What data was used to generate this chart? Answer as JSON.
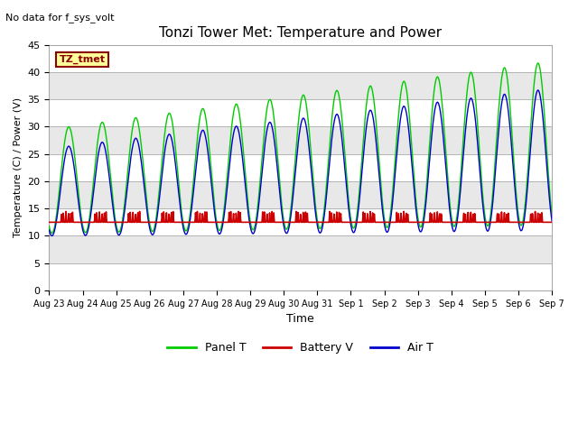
{
  "title": "Tonzi Tower Met: Temperature and Power",
  "no_data_text": "No data for f_sys_volt",
  "ylabel": "Temperature (C) / Power (V)",
  "xlabel": "Time",
  "legend_box_label": "TZ_tmet",
  "ylim": [
    0,
    45
  ],
  "yticks": [
    0,
    5,
    10,
    15,
    20,
    25,
    30,
    35,
    40,
    45
  ],
  "background_color": "#ffffff",
  "plot_bg_light": "#ffffff",
  "plot_bg_dark": "#e8e8e8",
  "panel_t_color": "#00cc00",
  "battery_v_color": "#cc0000",
  "air_t_color": "#0000cc",
  "panel_t_label": "Panel T",
  "battery_v_label": "Battery V",
  "air_t_label": "Air T",
  "num_days": 15,
  "figwidth": 6.4,
  "figheight": 4.8,
  "dpi": 100
}
